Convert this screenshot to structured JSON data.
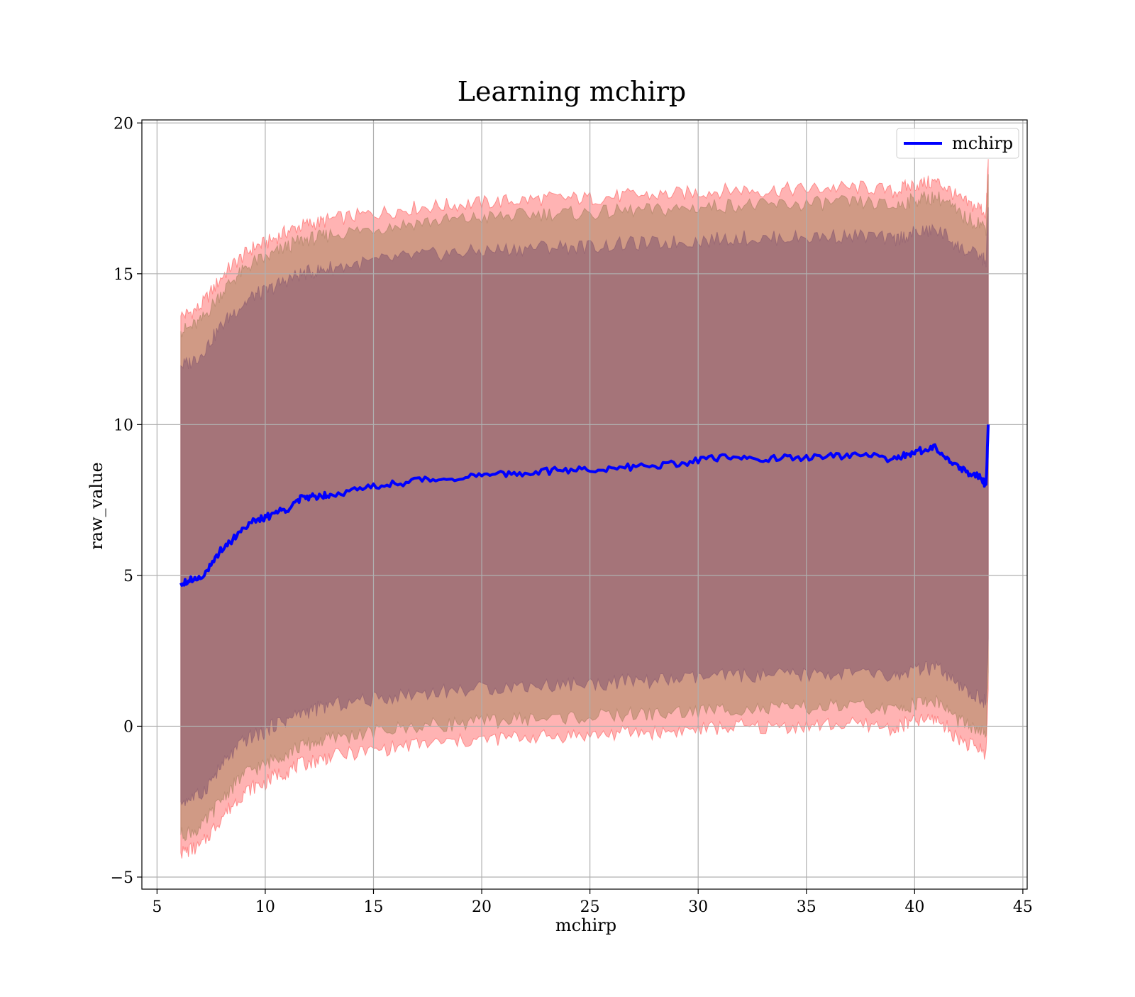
{
  "chart_data": {
    "type": "area",
    "title": "Learning mchirp",
    "xlabel": "mchirp",
    "ylabel": "raw_value",
    "xlim": [
      4.3,
      45.2
    ],
    "ylim": [
      -5.4,
      20.1
    ],
    "xticks": [
      5,
      10,
      15,
      20,
      25,
      30,
      35,
      40,
      45
    ],
    "yticks": [
      -5,
      0,
      5,
      10,
      15,
      20
    ],
    "xtick_labels": [
      "5",
      "10",
      "15",
      "20",
      "25",
      "30",
      "35",
      "40",
      "45"
    ],
    "ytick_labels": [
      "−5",
      "0",
      "5",
      "10",
      "15",
      "20"
    ],
    "grid": true,
    "legend": {
      "placement": "top-right",
      "entries": [
        "mchirp"
      ]
    },
    "colors": {
      "line": "#0000ff",
      "band_outer": "#ff8080",
      "band_middle": "#c8957c",
      "band_inner": "#a07078",
      "grid": "#b0b0b0"
    },
    "x": [
      6.1,
      6.5,
      7.0,
      7.5,
      8.0,
      8.5,
      9.0,
      9.5,
      10.0,
      10.5,
      11.0,
      11.5,
      12.0,
      12.5,
      13.0,
      14.0,
      15.0,
      16.0,
      17.0,
      18.0,
      19.0,
      20.0,
      21.0,
      22.0,
      23.0,
      24.0,
      25.0,
      26.0,
      27.0,
      28.0,
      29.0,
      30.0,
      31.0,
      32.0,
      33.0,
      34.0,
      35.0,
      36.0,
      37.0,
      38.0,
      39.0,
      39.5,
      40.0,
      40.5,
      41.0,
      41.5,
      42.0,
      42.5,
      43.0,
      43.3,
      43.4
    ],
    "series": [
      {
        "name": "mchirp",
        "values": [
          4.75,
          4.85,
          4.95,
          5.3,
          5.9,
          6.2,
          6.6,
          6.8,
          6.9,
          7.1,
          7.2,
          7.5,
          7.6,
          7.65,
          7.7,
          7.8,
          7.95,
          8.05,
          8.15,
          8.2,
          8.25,
          8.3,
          8.35,
          8.4,
          8.45,
          8.5,
          8.5,
          8.55,
          8.6,
          8.65,
          8.7,
          8.8,
          8.9,
          8.95,
          8.85,
          8.9,
          8.9,
          8.95,
          8.95,
          9.0,
          8.8,
          9.0,
          9.1,
          9.15,
          9.25,
          8.9,
          8.6,
          8.4,
          8.3,
          8.0,
          10.0
        ]
      }
    ],
    "bands": [
      {
        "level": "outer",
        "upper": [
          13.6,
          13.7,
          13.9,
          14.4,
          14.9,
          15.3,
          15.6,
          15.9,
          16.0,
          16.2,
          16.4,
          16.55,
          16.65,
          16.7,
          16.8,
          16.9,
          17.0,
          17.1,
          17.2,
          17.25,
          17.3,
          17.35,
          17.4,
          17.45,
          17.5,
          17.5,
          17.5,
          17.55,
          17.6,
          17.6,
          17.65,
          17.7,
          17.75,
          17.8,
          17.75,
          17.8,
          17.8,
          17.85,
          17.85,
          17.85,
          17.7,
          17.85,
          17.95,
          18.0,
          18.05,
          17.85,
          17.5,
          17.3,
          17.2,
          17.0,
          18.8
        ],
        "lower": [
          -4.2,
          -4.1,
          -4.0,
          -3.5,
          -3.0,
          -2.6,
          -2.2,
          -2.0,
          -1.9,
          -1.6,
          -1.5,
          -1.3,
          -1.2,
          -1.1,
          -1.0,
          -0.9,
          -0.8,
          -0.7,
          -0.6,
          -0.55,
          -0.5,
          -0.45,
          -0.4,
          -0.35,
          -0.35,
          -0.3,
          -0.3,
          -0.25,
          -0.2,
          -0.2,
          -0.15,
          -0.1,
          -0.05,
          0.0,
          -0.05,
          0.0,
          0.0,
          0.05,
          0.05,
          0.05,
          -0.1,
          0.05,
          0.15,
          0.2,
          0.25,
          -0.05,
          -0.4,
          -0.6,
          -0.75,
          -0.9,
          1.2
        ]
      },
      {
        "level": "middle",
        "upper": [
          13.1,
          13.2,
          13.4,
          13.9,
          14.4,
          14.8,
          15.1,
          15.4,
          15.5,
          15.7,
          15.9,
          16.05,
          16.15,
          16.2,
          16.3,
          16.4,
          16.5,
          16.6,
          16.7,
          16.75,
          16.8,
          16.85,
          16.9,
          16.95,
          17.0,
          17.0,
          17.0,
          17.05,
          17.1,
          17.1,
          17.15,
          17.2,
          17.25,
          17.3,
          17.25,
          17.3,
          17.3,
          17.35,
          17.35,
          17.35,
          17.2,
          17.35,
          17.45,
          17.5,
          17.55,
          17.35,
          17.0,
          16.8,
          16.7,
          16.5,
          18.3
        ],
        "lower": [
          -3.6,
          -3.5,
          -3.4,
          -2.9,
          -2.4,
          -2.0,
          -1.6,
          -1.4,
          -1.3,
          -1.0,
          -0.9,
          -0.7,
          -0.6,
          -0.5,
          -0.4,
          -0.3,
          -0.2,
          -0.1,
          0.0,
          0.05,
          0.1,
          0.15,
          0.2,
          0.25,
          0.25,
          0.3,
          0.3,
          0.35,
          0.4,
          0.4,
          0.45,
          0.5,
          0.55,
          0.6,
          0.55,
          0.6,
          0.6,
          0.65,
          0.65,
          0.65,
          0.5,
          0.65,
          0.75,
          0.8,
          0.85,
          0.55,
          0.2,
          0.0,
          -0.15,
          -0.3,
          1.8
        ]
      },
      {
        "level": "inner",
        "upper": [
          11.95,
          12.05,
          12.3,
          12.8,
          13.3,
          13.7,
          14.0,
          14.3,
          14.4,
          14.6,
          14.8,
          14.95,
          15.05,
          15.1,
          15.2,
          15.3,
          15.4,
          15.5,
          15.6,
          15.65,
          15.7,
          15.75,
          15.8,
          15.85,
          15.9,
          15.9,
          15.9,
          15.95,
          16.0,
          16.0,
          16.05,
          16.1,
          16.15,
          16.2,
          16.15,
          16.2,
          16.2,
          16.25,
          16.25,
          16.25,
          16.1,
          16.25,
          16.35,
          16.4,
          16.45,
          16.25,
          15.9,
          15.7,
          15.6,
          15.4,
          17.2
        ],
        "lower": [
          -2.5,
          -2.4,
          -2.3,
          -1.8,
          -1.3,
          -0.9,
          -0.5,
          -0.3,
          -0.2,
          0.1,
          0.2,
          0.4,
          0.5,
          0.6,
          0.7,
          0.8,
          0.9,
          1.0,
          1.1,
          1.15,
          1.2,
          1.25,
          1.3,
          1.35,
          1.35,
          1.4,
          1.4,
          1.45,
          1.5,
          1.5,
          1.55,
          1.6,
          1.65,
          1.7,
          1.65,
          1.7,
          1.7,
          1.75,
          1.75,
          1.75,
          1.6,
          1.75,
          1.85,
          1.9,
          1.95,
          1.65,
          1.3,
          1.1,
          0.95,
          0.8,
          2.9
        ]
      }
    ]
  }
}
